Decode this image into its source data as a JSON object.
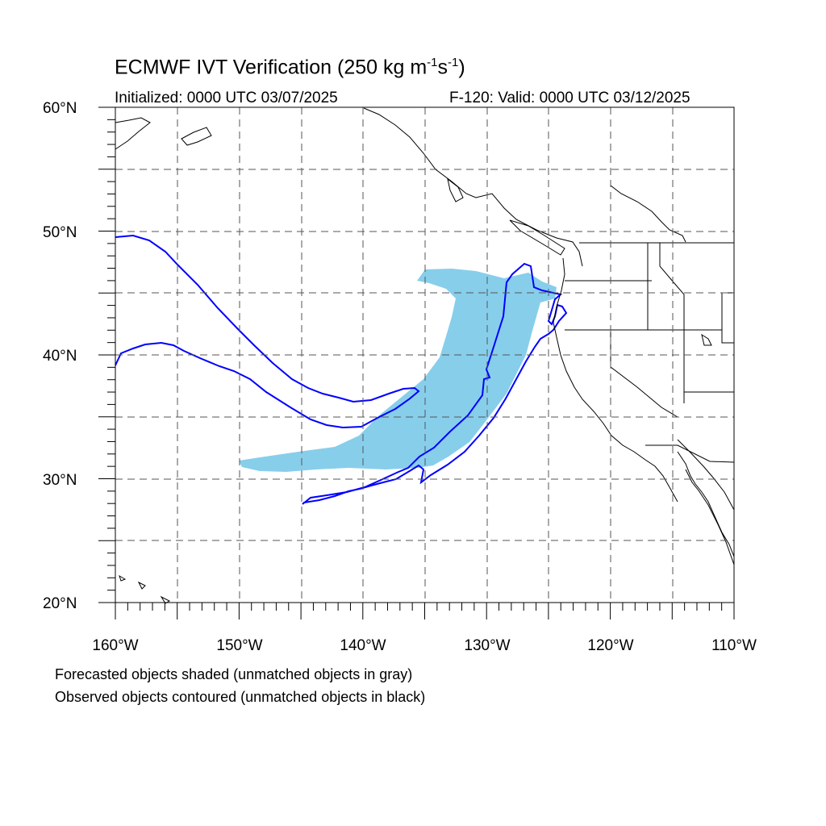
{
  "title": {
    "main": "ECMWF IVT Verification (250 kg m",
    "exp1": "-1",
    "mid": "s",
    "exp2": "-1",
    "end": ")"
  },
  "initialized": "Initialized: 0000 UTC 03/07/2025",
  "valid": "F-120: Valid: 0000 UTC 03/12/2025",
  "captions": [
    "Forecasted objects shaded (unmatched objects in gray)",
    "Observed objects contoured (unmatched objects in black)"
  ],
  "map": {
    "lon_range": [
      -160,
      -110
    ],
    "lat_range": [
      20,
      60
    ],
    "lon_ticks": [
      "160°W",
      "150°W",
      "140°W",
      "130°W",
      "120°W",
      "110°W"
    ],
    "lat_ticks": [
      "20°N",
      "30°N",
      "40°N",
      "50°N",
      "60°N"
    ],
    "forecast_fill_color": "#87CEEB",
    "observed_contour_color": "#0000FF",
    "grid": "dashed"
  }
}
